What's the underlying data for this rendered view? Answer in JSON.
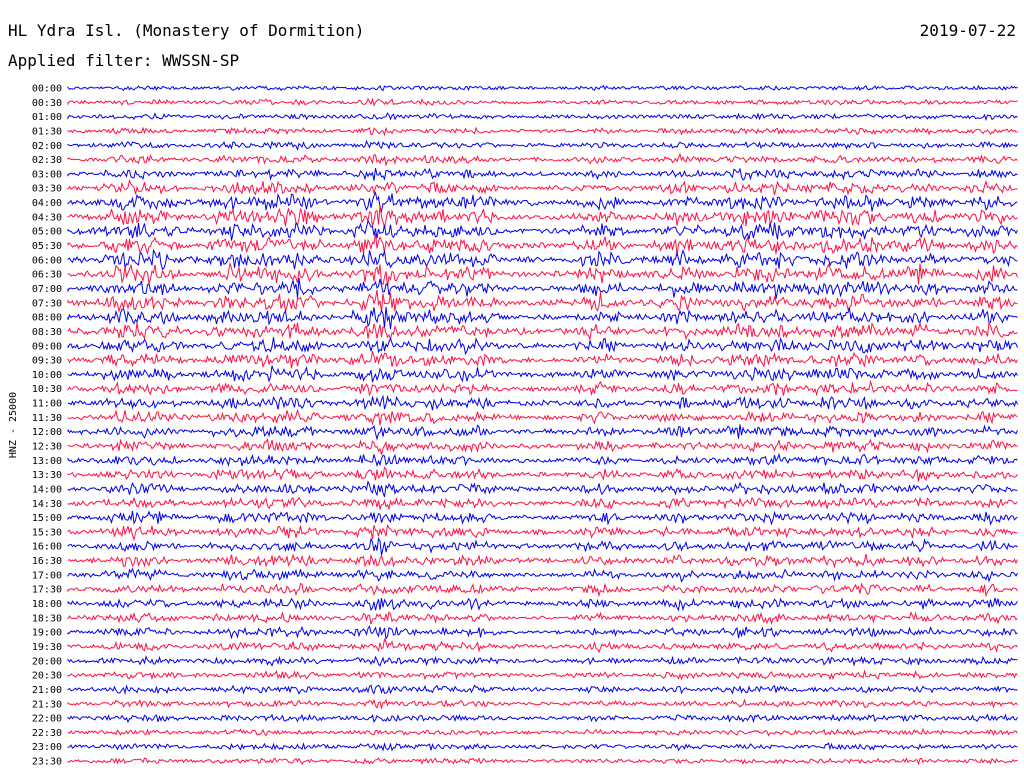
{
  "header": {
    "station": "HL Ydra Isl. (Monastery of Dormition)",
    "filter": "Applied filter: WWSSN-SP",
    "date": "2019-07-22"
  },
  "chart_data": {
    "type": "line",
    "title": "HL Ydra Isl. (Monastery of Dormition)",
    "subtitle": "Applied filter: WWSSN-SP",
    "date": "2019-07-22",
    "ylabel": "HNZ - 25000",
    "xlabel": "",
    "colors": [
      "#0000ee",
      "#ff1144"
    ],
    "grid": false,
    "legend": "none",
    "row_labels": [
      "00:00",
      "00:30",
      "01:00",
      "01:30",
      "02:00",
      "02:30",
      "03:00",
      "03:30",
      "04:00",
      "04:30",
      "05:00",
      "05:30",
      "06:00",
      "06:30",
      "07:00",
      "07:30",
      "08:00",
      "08:30",
      "09:00",
      "09:30",
      "10:00",
      "10:30",
      "11:00",
      "11:30",
      "12:00",
      "12:30",
      "13:00",
      "13:30",
      "14:00",
      "14:30",
      "15:00",
      "15:30",
      "16:00",
      "16:30",
      "17:00",
      "17:30",
      "18:00",
      "18:30",
      "19:00",
      "19:30",
      "20:00",
      "20:30",
      "21:00",
      "21:30",
      "22:00",
      "22:30",
      "23:00",
      "23:30"
    ],
    "row_activity": [
      0.15,
      0.2,
      0.2,
      0.25,
      0.3,
      0.4,
      0.5,
      0.7,
      0.9,
      1.0,
      1.0,
      1.0,
      1.0,
      1.0,
      1.0,
      1.0,
      0.95,
      0.9,
      0.85,
      0.8,
      0.75,
      0.7,
      0.7,
      0.65,
      0.65,
      0.6,
      0.6,
      0.6,
      0.6,
      0.6,
      0.6,
      0.6,
      0.6,
      0.6,
      0.55,
      0.55,
      0.55,
      0.5,
      0.5,
      0.45,
      0.4,
      0.35,
      0.35,
      0.3,
      0.3,
      0.25,
      0.25,
      0.2
    ]
  }
}
